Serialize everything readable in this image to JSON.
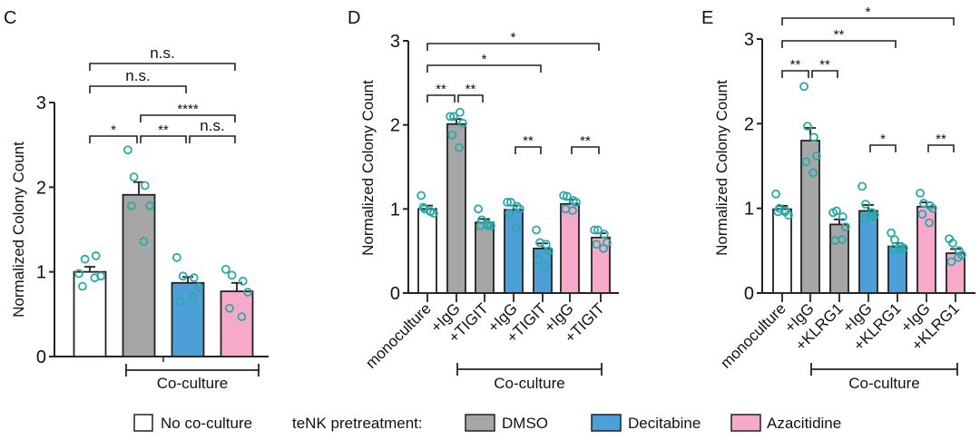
{
  "colors": {
    "none": "#ffffff",
    "dmso": "#a6a6a6",
    "decitabine": "#4d9fd8",
    "azacitidine": "#f7a9c9",
    "points": "#2aa9a9"
  },
  "legend": {
    "no_coculture": "No co-culture",
    "pretreatment_label": "teNK pretreatment:",
    "dmso": "DMSO",
    "decitabine": "Decitabine",
    "azacitidine": "Azacitidine"
  },
  "chart_data": [
    {
      "panel": "C",
      "type": "bar",
      "ylabel": "Normalized Colony Count",
      "ylim": [
        0,
        3
      ],
      "yticks": [
        "0",
        "1",
        "2",
        "3"
      ],
      "categories": [
        "No co-culture",
        "DMSO",
        "Decitabine",
        "Azacitidine"
      ],
      "tick_labels": [
        "",
        "",
        "",
        ""
      ],
      "fills": [
        "none",
        "dmso",
        "decitabine",
        "azacitidine"
      ],
      "values": [
        1.0,
        1.91,
        0.87,
        0.77
      ],
      "errors": [
        0.06,
        0.15,
        0.07,
        0.1
      ],
      "points": [
        [
          0.98,
          1.15,
          1.19,
          0.95,
          0.83,
          0.93
        ],
        [
          2.44,
          2.12,
          2.02,
          1.78,
          1.78,
          1.36
        ],
        [
          1.17,
          0.95,
          0.93,
          0.82,
          0.65,
          0.7
        ],
        [
          1.03,
          0.96,
          0.89,
          0.76,
          0.57,
          0.47
        ]
      ],
      "group_label": "Co-culture",
      "significance": [
        {
          "from": 0,
          "to": 3,
          "label": "n.s."
        },
        {
          "from": 0,
          "to": 2,
          "label": "n.s."
        },
        {
          "from": 1,
          "to": 3,
          "label": "****"
        },
        {
          "from": 0,
          "to": 1,
          "label": "*"
        },
        {
          "from": 1,
          "to": 2,
          "label": "**"
        },
        {
          "from": 2,
          "to": 3,
          "label": "n.s."
        }
      ]
    },
    {
      "panel": "D",
      "type": "bar",
      "ylabel": "Normalized Colony Count",
      "ylim": [
        0,
        3
      ],
      "yticks": [
        "0",
        "1",
        "2",
        "3"
      ],
      "categories": [
        "monoculture",
        "+IgG",
        "+TIGIT",
        "+IgG",
        "+TIGIT",
        "+IgG",
        "+TIGIT"
      ],
      "tick_labels": [
        "monoculture",
        "+IgG",
        "+TIGIT",
        "+IgG",
        "+TIGIT",
        "+IgG",
        "+TIGIT"
      ],
      "fills": [
        "none",
        "dmso",
        "dmso",
        "decitabine",
        "decitabine",
        "azacitidine",
        "azacitidine"
      ],
      "values": [
        1.0,
        2.01,
        0.84,
        0.99,
        0.53,
        1.06,
        0.66
      ],
      "errors": [
        0.04,
        0.06,
        0.04,
        0.05,
        0.06,
        0.05,
        0.05
      ],
      "points": [
        [
          1.16,
          1.0,
          0.97,
          0.95,
          1.02,
          0.97
        ],
        [
          2.1,
          2.1,
          2.15,
          2.02,
          1.88,
          1.73
        ],
        [
          1.0,
          0.87,
          0.8,
          0.8,
          0.8,
          0.82
        ],
        [
          1.08,
          1.08,
          1.03,
          1.0,
          0.95,
          0.78
        ],
        [
          0.75,
          0.6,
          0.58,
          0.5,
          0.4,
          0.32
        ],
        [
          1.16,
          1.15,
          1.1,
          1.08,
          1.0,
          0.98
        ],
        [
          0.75,
          0.75,
          0.7,
          0.6,
          0.58,
          0.53
        ]
      ],
      "group_label": "Co-culture",
      "significance": [
        {
          "from": 0,
          "to": 6,
          "label": "*"
        },
        {
          "from": 0,
          "to": 4,
          "label": "*"
        },
        {
          "from": 0,
          "to": 1,
          "label": "**"
        },
        {
          "from": 1,
          "to": 2,
          "label": "**"
        },
        {
          "from": 3,
          "to": 4,
          "label": "**"
        },
        {
          "from": 5,
          "to": 6,
          "label": "**"
        }
      ]
    },
    {
      "panel": "E",
      "type": "bar",
      "ylabel": "Normalized Colony Count",
      "ylim": [
        0,
        3
      ],
      "yticks": [
        "0",
        "1",
        "2",
        "3"
      ],
      "categories": [
        "monoculture",
        "+IgG",
        "+KLRG1",
        "+IgG",
        "+KLRG1",
        "+IgG",
        "+KLRG1"
      ],
      "tick_labels": [
        "monoculture",
        "+IgG",
        "+KLRG1",
        "+IgG",
        "+KLRG1",
        "+IgG",
        "+KLRG1"
      ],
      "fills": [
        "none",
        "dmso",
        "dmso",
        "decitabine",
        "decitabine",
        "azacitidine",
        "azacitidine"
      ],
      "values": [
        0.99,
        1.8,
        0.81,
        0.97,
        0.55,
        1.02,
        0.47
      ],
      "errors": [
        0.04,
        0.15,
        0.06,
        0.07,
        0.04,
        0.05,
        0.05
      ],
      "points": [
        [
          1.17,
          1.0,
          0.97,
          0.92,
          0.96,
          0.96
        ],
        [
          2.44,
          1.97,
          1.84,
          1.62,
          1.55,
          1.42
        ],
        [
          0.95,
          0.97,
          0.9,
          0.78,
          0.62,
          0.63
        ],
        [
          1.26,
          1.05,
          0.95,
          0.92,
          0.88,
          0.9
        ],
        [
          0.71,
          0.63,
          0.55,
          0.53,
          0.52,
          0.52
        ],
        [
          1.18,
          1.06,
          1.03,
          1.0,
          0.93,
          0.83
        ],
        [
          0.64,
          0.59,
          0.5,
          0.45,
          0.37,
          0.42
        ]
      ],
      "group_label": "Co-culture",
      "significance": [
        {
          "from": 0,
          "to": 6,
          "label": "*"
        },
        {
          "from": 0,
          "to": 4,
          "label": "**"
        },
        {
          "from": 0,
          "to": 1,
          "label": "**"
        },
        {
          "from": 1,
          "to": 2,
          "label": "**"
        },
        {
          "from": 3,
          "to": 4,
          "label": "*"
        },
        {
          "from": 5,
          "to": 6,
          "label": "**"
        }
      ]
    }
  ]
}
